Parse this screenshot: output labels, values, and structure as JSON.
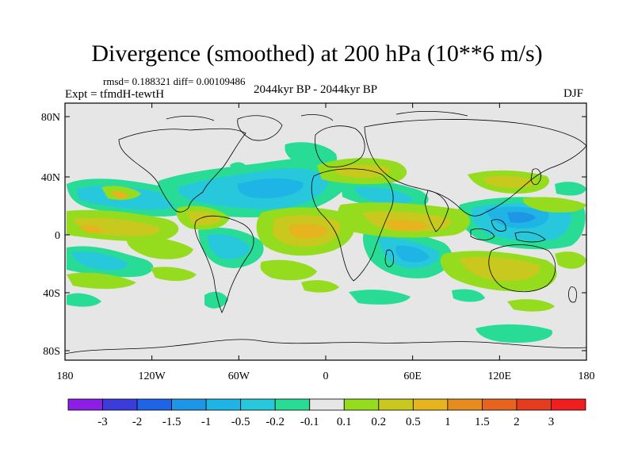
{
  "title": "Divergence (smoothed) at 200 hPa (10**6 m/s)",
  "stats": "rmsd= 0.188321 diff= 0.00109486",
  "experiment": "Expt = tfmdH-tewtH",
  "period": "2044kyr BP - 2044kyr BP",
  "season": "DJF",
  "x_ticks": [
    "180",
    "120W",
    "60W",
    "0",
    "60E",
    "120E",
    "180"
  ],
  "y_ticks": [
    "80N",
    "40N",
    "0",
    "40S",
    "80S"
  ],
  "colorbar": {
    "labels": [
      "-3",
      "-2",
      "-1.5",
      "-1",
      "-0.5",
      "-0.2",
      "-0.1",
      "0.1",
      "0.2",
      "0.5",
      "1",
      "1.5",
      "2",
      "3"
    ],
    "colors": [
      "#8c1ee6",
      "#3c3cdc",
      "#1e64e6",
      "#1e96e6",
      "#1eb4e6",
      "#28c8dc",
      "#28dc96",
      "#e6e6e6",
      "#96dc1e",
      "#c8c81e",
      "#e6b41e",
      "#e68c1e",
      "#e6641e",
      "#e63c1e",
      "#f01e1e"
    ]
  },
  "colors": {
    "neutral": "#e6e6e6",
    "neg_weak": "#28dc96",
    "neg_mid": "#28c8dc",
    "neg_strong": "#1eb4e6",
    "neg_stronger": "#1e96e6",
    "pos_weak": "#96dc1e",
    "pos_mid": "#c8c81e",
    "pos_strong": "#e6b41e",
    "coast": "#000000"
  }
}
